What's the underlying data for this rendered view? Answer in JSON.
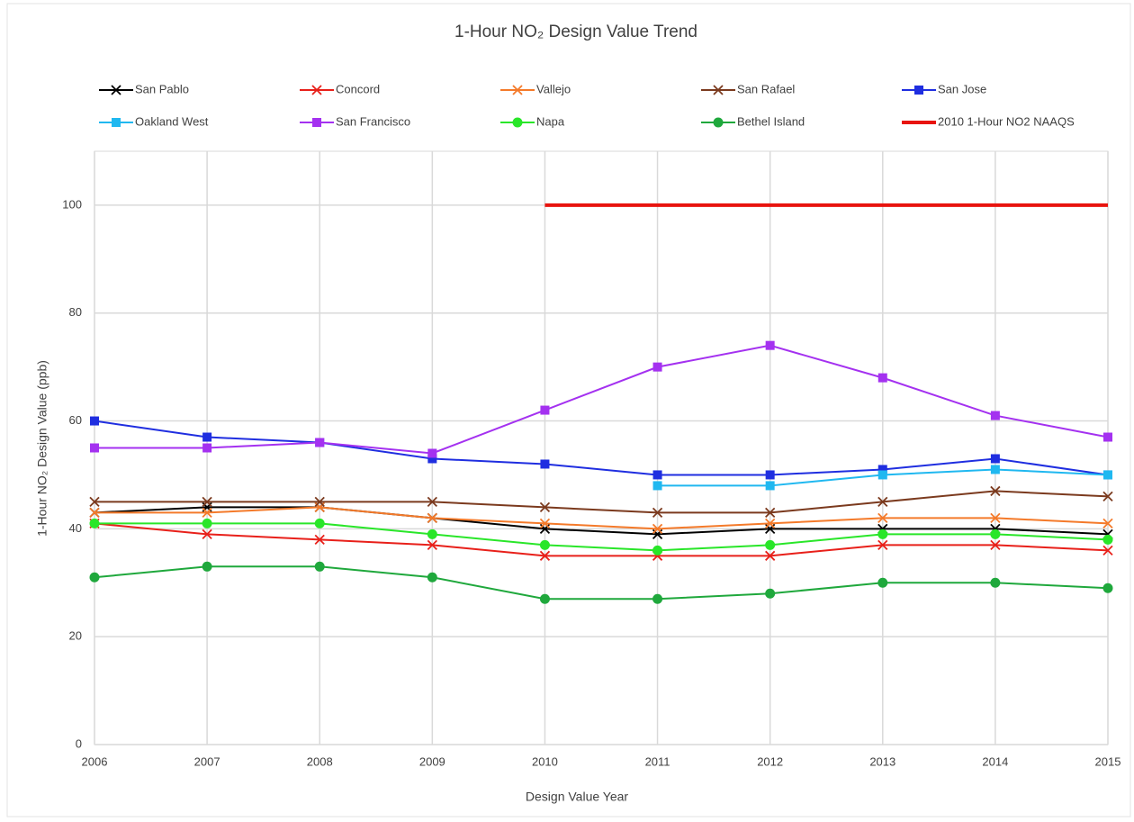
{
  "chart_data": {
    "type": "line",
    "title": "1-Hour NO₂ Design Value Trend",
    "x_label": "Design Value Year",
    "y_label": "1-Hour NO₂ Design Value (ppb)",
    "x": [
      2006,
      2007,
      2008,
      2009,
      2010,
      2011,
      2012,
      2013,
      2014,
      2015
    ],
    "xlim": [
      2006,
      2015
    ],
    "xticks": [
      2006,
      2007,
      2008,
      2009,
      2010,
      2011,
      2012,
      2013,
      2014,
      2015
    ],
    "ylim": [
      0,
      110
    ],
    "yticks": [
      0,
      20,
      40,
      60,
      80,
      100
    ],
    "grid": true,
    "legend": "top",
    "series": [
      {
        "name": "San Pablo",
        "color": "#000000",
        "marker": "x",
        "values": [
          43,
          44,
          44,
          42,
          40,
          39,
          40,
          40,
          40,
          39
        ]
      },
      {
        "name": "Concord",
        "color": "#e8201a",
        "marker": "x",
        "values": [
          41,
          39,
          38,
          37,
          35,
          35,
          35,
          37,
          37,
          36
        ]
      },
      {
        "name": "Vallejo",
        "color": "#f47a2a",
        "marker": "x",
        "values": [
          43,
          43,
          44,
          42,
          41,
          40,
          41,
          42,
          42,
          41
        ]
      },
      {
        "name": "San Rafael",
        "color": "#7b3a1e",
        "marker": "x",
        "values": [
          45,
          45,
          45,
          45,
          44,
          43,
          43,
          45,
          47,
          46
        ]
      },
      {
        "name": "San Jose",
        "color": "#1f2ee0",
        "marker": "square",
        "values": [
          60,
          57,
          56,
          53,
          52,
          50,
          50,
          51,
          53,
          50
        ]
      },
      {
        "name": "Oakland West",
        "color": "#20b8f0",
        "marker": "square",
        "values": [
          null,
          null,
          null,
          null,
          null,
          48,
          48,
          50,
          51,
          50
        ]
      },
      {
        "name": "San Francisco",
        "color": "#a431f0",
        "marker": "square",
        "values": [
          55,
          55,
          56,
          54,
          62,
          70,
          74,
          68,
          61,
          57
        ]
      },
      {
        "name": "Napa",
        "color": "#29e629",
        "marker": "circle",
        "values": [
          41,
          41,
          41,
          39,
          37,
          36,
          37,
          39,
          39,
          38
        ]
      },
      {
        "name": "Bethel Island",
        "color": "#1fa83c",
        "marker": "circle",
        "values": [
          31,
          33,
          33,
          31,
          27,
          27,
          28,
          30,
          30,
          29
        ]
      },
      {
        "name": "2010 1-Hour NO2 NAAQS",
        "color": "#e8140f",
        "marker": "none",
        "line_width": 4,
        "values": [
          null,
          null,
          null,
          null,
          100,
          100,
          100,
          100,
          100,
          100
        ]
      }
    ]
  }
}
